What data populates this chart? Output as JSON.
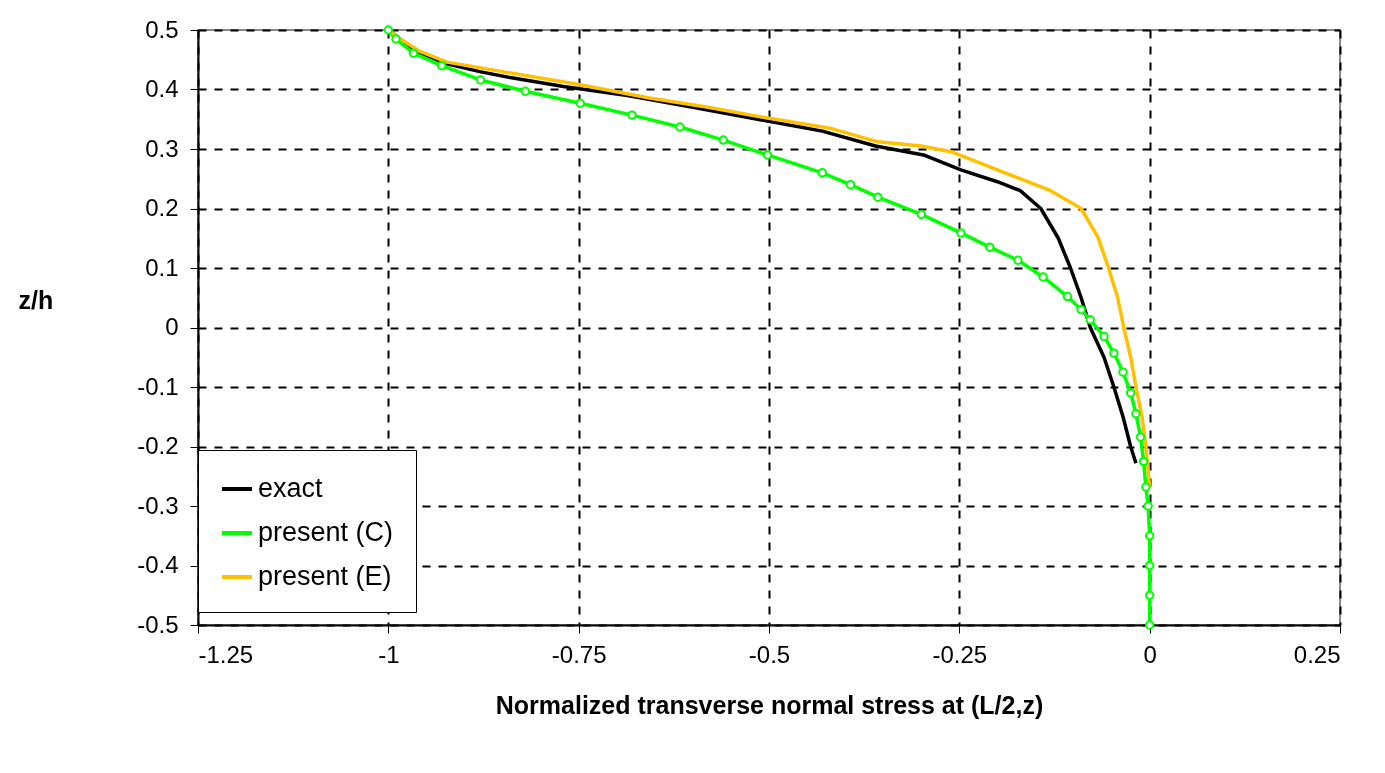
{
  "chart_data": {
    "type": "line",
    "xlabel": "Normalized transverse normal stress at (L/2,z)",
    "ylabel": "z/h",
    "xlim": [
      -1.25,
      0.25
    ],
    "xticks": [
      -1.25,
      -1,
      -0.75,
      -0.5,
      -0.25,
      0,
      0.25
    ],
    "ylim": [
      -0.5,
      0.5
    ],
    "yticks": [
      -0.5,
      -0.4,
      -0.3,
      -0.2,
      -0.1,
      0,
      0.1,
      0.2,
      0.3,
      0.4,
      0.5
    ],
    "grid": true,
    "legend": "bottom left",
    "line_style": "solid",
    "series": [
      {
        "name": "exact",
        "color": "#000000",
        "x": [
          -1.0,
          -0.965,
          -0.923,
          -0.88,
          -0.84,
          -0.77,
          -0.686,
          -0.6,
          -0.502,
          -0.43,
          -0.36,
          -0.297,
          -0.248,
          -0.2,
          -0.17,
          -0.143,
          -0.12,
          -0.104,
          -0.09,
          -0.078,
          -0.06,
          -0.047,
          -0.035,
          -0.025,
          -0.018
        ],
        "values": [
          0.5,
          0.465,
          0.443,
          0.43,
          0.42,
          0.405,
          0.39,
          0.37,
          0.347,
          0.33,
          0.305,
          0.29,
          0.265,
          0.245,
          0.23,
          0.2,
          0.15,
          0.1,
          0.05,
          0.0,
          -0.05,
          -0.1,
          -0.15,
          -0.2,
          -0.228
        ]
      },
      {
        "name": "present (C)",
        "color": "#00ff00",
        "marker": "circle",
        "x": [
          -1.0,
          -0.99,
          -0.967,
          -0.93,
          -0.879,
          -0.82,
          -0.748,
          -0.68,
          -0.617,
          -0.56,
          -0.502,
          -0.43,
          -0.393,
          -0.357,
          -0.3,
          -0.248,
          -0.21,
          -0.173,
          -0.14,
          -0.108,
          -0.09,
          -0.078,
          -0.06,
          -0.047,
          -0.035,
          -0.025,
          -0.018,
          -0.012,
          -0.008,
          -0.005,
          -0.002,
          0.0,
          0.0,
          0.0,
          0.0
        ],
        "values": [
          0.5,
          0.485,
          0.461,
          0.44,
          0.416,
          0.397,
          0.377,
          0.357,
          0.337,
          0.315,
          0.29,
          0.26,
          0.24,
          0.219,
          0.19,
          0.159,
          0.135,
          0.113,
          0.085,
          0.052,
          0.03,
          0.013,
          -0.015,
          -0.043,
          -0.075,
          -0.11,
          -0.145,
          -0.184,
          -0.225,
          -0.268,
          -0.3,
          -0.35,
          -0.4,
          -0.45,
          -0.5
        ]
      },
      {
        "name": "present (E)",
        "color": "#ffc000",
        "x": [
          -1.0,
          -0.988,
          -0.96,
          -0.923,
          -0.85,
          -0.748,
          -0.659,
          -0.58,
          -0.502,
          -0.42,
          -0.357,
          -0.3,
          -0.26,
          -0.19,
          -0.13,
          -0.09,
          -0.068,
          -0.054,
          -0.042,
          -0.034,
          -0.025,
          -0.018,
          -0.01,
          -0.005,
          0.0
        ],
        "values": [
          0.5,
          0.488,
          0.465,
          0.446,
          0.43,
          0.408,
          0.386,
          0.37,
          0.352,
          0.335,
          0.312,
          0.305,
          0.295,
          0.26,
          0.23,
          0.2,
          0.152,
          0.1,
          0.05,
          0.0,
          -0.05,
          -0.1,
          -0.15,
          -0.2,
          -0.27
        ]
      }
    ]
  }
}
